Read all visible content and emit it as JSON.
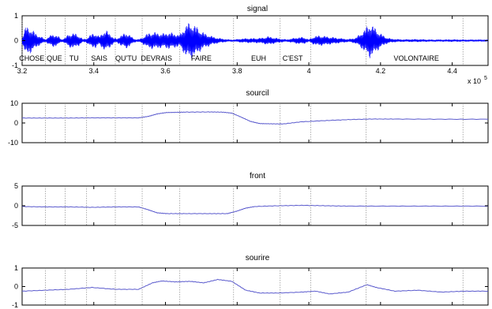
{
  "chart_data": [
    {
      "type": "line",
      "title": "signal",
      "x_exponent_label": "x 10",
      "x_exponent_power": "5",
      "xlim": [
        3.2,
        4.5
      ],
      "ylim": [
        -1,
        1
      ],
      "x_ticks": [
        "3.2",
        "3.4",
        "3.6",
        "3.8",
        "4",
        "4.2",
        "4.4"
      ],
      "x_tick_values": [
        3.2,
        3.4,
        3.6,
        3.8,
        4.0,
        4.2,
        4.4
      ],
      "y_ticks": [
        "1",
        "0",
        "-1"
      ],
      "y_tick_values": [
        1,
        0,
        -1
      ],
      "color": "#0000ff",
      "segment_boundaries": [
        3.2,
        3.265,
        3.32,
        3.38,
        3.46,
        3.535,
        3.64,
        3.79,
        3.92,
        4.005,
        4.16,
        4.43
      ],
      "words": [
        {
          "text": "CHOSE",
          "x": 3.227
        },
        {
          "text": "QUE",
          "x": 3.29
        },
        {
          "text": "TU",
          "x": 3.345
        },
        {
          "text": "SAIS",
          "x": 3.415
        },
        {
          "text": "QU'TU",
          "x": 3.49
        },
        {
          "text": "DEVRAIS",
          "x": 3.575
        },
        {
          "text": "FAIRE",
          "x": 3.7
        },
        {
          "text": "EUH",
          "x": 3.86
        },
        {
          "text": "C'EST",
          "x": 3.955
        },
        {
          "text": "VOLONTAIRE",
          "x": 4.3
        }
      ],
      "envelope": {
        "x": [
          3.2,
          3.21,
          3.225,
          3.24,
          3.255,
          3.265,
          3.275,
          3.285,
          3.3,
          3.31,
          3.32,
          3.33,
          3.345,
          3.36,
          3.37,
          3.38,
          3.395,
          3.405,
          3.415,
          3.425,
          3.435,
          3.445,
          3.455,
          3.465,
          3.475,
          3.49,
          3.5,
          3.51,
          3.52,
          3.53,
          3.54,
          3.55,
          3.565,
          3.58,
          3.595,
          3.61,
          3.625,
          3.64,
          3.65,
          3.66,
          3.67,
          3.68,
          3.69,
          3.7,
          3.71,
          3.72,
          3.73,
          3.745,
          3.76,
          3.775,
          3.79,
          3.81,
          3.83,
          3.85,
          3.87,
          3.885,
          3.9,
          3.92,
          3.94,
          3.955,
          3.97,
          3.985,
          4.0,
          4.015,
          4.03,
          4.05,
          4.07,
          4.09,
          4.11,
          4.13,
          4.145,
          4.16,
          4.17,
          4.18,
          4.19,
          4.2,
          4.215,
          4.23,
          4.26,
          4.3,
          4.35,
          4.4,
          4.45,
          4.5
        ],
        "amp": [
          0.12,
          0.6,
          0.5,
          0.28,
          0.15,
          0.05,
          0.18,
          0.28,
          0.2,
          0.05,
          0.12,
          0.28,
          0.32,
          0.2,
          0.06,
          0.1,
          0.3,
          0.3,
          0.18,
          0.35,
          0.42,
          0.3,
          0.12,
          0.08,
          0.22,
          0.33,
          0.25,
          0.1,
          0.05,
          0.08,
          0.18,
          0.3,
          0.36,
          0.32,
          0.3,
          0.35,
          0.3,
          0.25,
          0.5,
          0.7,
          0.75,
          0.65,
          0.55,
          0.4,
          0.3,
          0.25,
          0.18,
          0.12,
          0.08,
          0.05,
          0.04,
          0.08,
          0.1,
          0.1,
          0.12,
          0.18,
          0.14,
          0.08,
          0.05,
          0.1,
          0.14,
          0.15,
          0.05,
          0.18,
          0.22,
          0.18,
          0.14,
          0.1,
          0.06,
          0.12,
          0.3,
          0.55,
          0.72,
          0.6,
          0.45,
          0.3,
          0.15,
          0.08,
          0.05,
          0.06,
          0.04,
          0.05,
          0.04,
          0.03
        ]
      }
    },
    {
      "type": "line",
      "title": "sourcil",
      "ylim": [
        -10,
        10
      ],
      "y_ticks": [
        "10",
        "0",
        "-10"
      ],
      "y_tick_values": [
        10,
        0,
        -10
      ],
      "color": "#5a5acd",
      "x": [
        0,
        0.05,
        0.1,
        0.15,
        0.2,
        0.25,
        0.27,
        0.29,
        0.31,
        0.33,
        0.35,
        0.4,
        0.43,
        0.45,
        0.47,
        0.49,
        0.51,
        0.53,
        0.56,
        0.6,
        0.65,
        0.7,
        0.75,
        0.8,
        0.9,
        1.0
      ],
      "values": [
        2.5,
        2.5,
        2.5,
        2.6,
        2.6,
        2.6,
        3.3,
        4.6,
        5.3,
        5.4,
        5.5,
        5.6,
        5.5,
        5.0,
        3.0,
        0.8,
        -0.3,
        -0.4,
        -0.5,
        0.6,
        1.2,
        1.7,
        2.0,
        2.0,
        1.9,
        1.9
      ]
    },
    {
      "type": "line",
      "title": "front",
      "ylim": [
        -5,
        5
      ],
      "y_ticks": [
        "5",
        "0",
        "-5"
      ],
      "y_tick_values": [
        5,
        0,
        -5
      ],
      "color": "#5a5acd",
      "x": [
        0,
        0.05,
        0.1,
        0.15,
        0.2,
        0.25,
        0.27,
        0.29,
        0.31,
        0.35,
        0.4,
        0.44,
        0.46,
        0.48,
        0.5,
        0.55,
        0.6,
        0.65,
        0.7,
        0.8,
        0.9,
        1.0
      ],
      "values": [
        -0.2,
        -0.3,
        -0.3,
        -0.4,
        -0.3,
        -0.3,
        -1.0,
        -1.8,
        -2.0,
        -2.0,
        -2.0,
        -2.0,
        -1.4,
        -0.6,
        -0.2,
        0.0,
        0.1,
        0.0,
        -0.1,
        -0.1,
        -0.1,
        -0.1
      ]
    },
    {
      "type": "line",
      "title": "sourire",
      "ylim": [
        -1,
        1
      ],
      "y_ticks": [
        "1",
        "0",
        "-1"
      ],
      "y_tick_values": [
        1,
        0,
        -1
      ],
      "color": "#5a5acd",
      "x": [
        0,
        0.05,
        0.1,
        0.15,
        0.2,
        0.25,
        0.28,
        0.3,
        0.33,
        0.36,
        0.39,
        0.42,
        0.45,
        0.48,
        0.51,
        0.55,
        0.6,
        0.63,
        0.66,
        0.7,
        0.74,
        0.76,
        0.8,
        0.85,
        0.9,
        0.95,
        1.0
      ],
      "values": [
        -0.25,
        -0.2,
        -0.15,
        -0.05,
        -0.15,
        -0.15,
        0.2,
        0.3,
        0.25,
        0.28,
        0.2,
        0.38,
        0.28,
        -0.2,
        -0.35,
        -0.35,
        -0.3,
        -0.25,
        -0.4,
        -0.3,
        0.1,
        -0.05,
        -0.25,
        -0.2,
        -0.3,
        -0.25,
        -0.25
      ]
    }
  ]
}
